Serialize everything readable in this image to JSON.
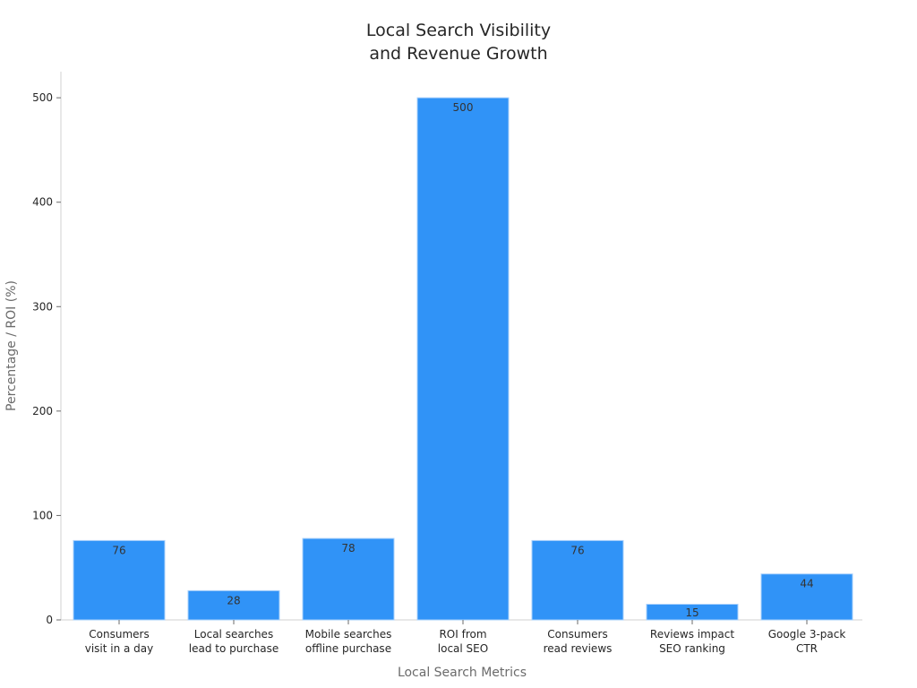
{
  "chart_data": {
    "type": "bar",
    "title": [
      "Local Search Visibility",
      "and Revenue Growth"
    ],
    "xlabel": "Local Search Metrics",
    "ylabel": "Percentage / ROI (%)",
    "categories": [
      [
        "Consumers",
        "visit in a day"
      ],
      [
        "Local searches",
        "lead to purchase"
      ],
      [
        "Mobile searches",
        "offline purchase"
      ],
      [
        "ROI from",
        "local SEO"
      ],
      [
        "Consumers",
        "read reviews"
      ],
      [
        "Reviews impact",
        "SEO ranking"
      ],
      [
        "Google 3-pack",
        "CTR"
      ]
    ],
    "values": [
      76,
      28,
      78,
      500,
      76,
      15,
      44
    ],
    "ylim": [
      0,
      525
    ],
    "yticks": [
      0,
      100,
      200,
      300,
      400,
      500
    ],
    "bar_color": "#3093f7",
    "grid": false,
    "legend": false
  }
}
